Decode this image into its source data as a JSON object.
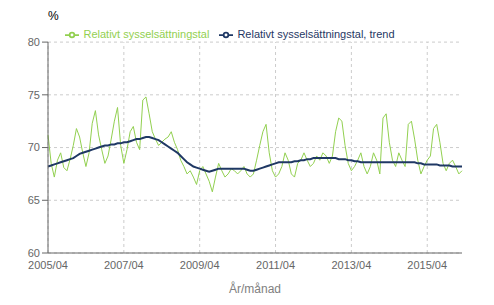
{
  "chart_data": {
    "type": "line",
    "xlabel": "År/månad",
    "ylabel": "%",
    "categories": [
      "2005/04",
      null,
      null,
      null,
      null,
      null,
      null,
      null,
      null,
      null,
      null,
      null,
      null,
      null,
      null,
      null,
      null,
      null,
      null,
      null,
      null,
      null,
      null,
      null,
      "2007/04",
      null,
      null,
      null,
      null,
      null,
      null,
      null,
      null,
      null,
      null,
      null,
      null,
      null,
      null,
      null,
      null,
      null,
      null,
      null,
      null,
      null,
      null,
      null,
      "2009/04",
      null,
      null,
      null,
      null,
      null,
      null,
      null,
      null,
      null,
      null,
      null,
      null,
      null,
      null,
      null,
      null,
      null,
      null,
      null,
      null,
      null,
      null,
      null,
      "2011/04",
      null,
      null,
      null,
      null,
      null,
      null,
      null,
      null,
      null,
      null,
      null,
      null,
      null,
      null,
      null,
      null,
      null,
      null,
      null,
      null,
      null,
      null,
      null,
      "2013/04",
      null,
      null,
      null,
      null,
      null,
      null,
      null,
      null,
      null,
      null,
      null,
      null,
      null,
      null,
      null,
      null,
      null,
      null,
      null,
      null,
      null,
      null,
      null,
      "2015/04",
      null,
      null,
      null,
      null,
      null,
      null,
      null,
      null,
      null,
      null,
      null
    ],
    "series": [
      {
        "name": "Relativt sysselsättningstal",
        "color": "#92d050",
        "values": [
          71.2,
          68.5,
          67.2,
          68.8,
          69.5,
          68.1,
          67.8,
          68.9,
          70.2,
          71.8,
          71.0,
          69.5,
          68.2,
          69.5,
          72.3,
          73.5,
          71.2,
          69.8,
          68.5,
          69.2,
          70.8,
          72.5,
          73.8,
          70.2,
          68.5,
          69.8,
          71.5,
          72.0,
          70.5,
          69.8,
          74.5,
          74.8,
          73.2,
          71.5,
          70.8,
          70.2,
          70.5,
          70.8,
          71.0,
          71.5,
          70.5,
          69.8,
          68.8,
          68.2,
          67.5,
          67.8,
          67.2,
          66.5,
          67.8,
          68.2,
          67.5,
          66.8,
          65.8,
          67.2,
          68.5,
          67.8,
          67.2,
          67.5,
          68.0,
          67.8,
          67.5,
          67.8,
          68.2,
          67.5,
          67.2,
          67.5,
          68.8,
          70.2,
          71.5,
          72.2,
          69.5,
          67.8,
          67.2,
          67.5,
          68.2,
          69.5,
          68.8,
          67.5,
          67.2,
          68.5,
          68.8,
          69.5,
          68.8,
          68.2,
          68.5,
          69.2,
          68.8,
          69.5,
          69.2,
          68.5,
          69.2,
          71.5,
          72.8,
          72.5,
          70.2,
          68.5,
          67.8,
          68.2,
          68.8,
          69.5,
          68.2,
          67.5,
          68.2,
          69.5,
          68.8,
          67.5,
          72.8,
          73.2,
          70.5,
          68.8,
          68.2,
          69.5,
          68.8,
          68.2,
          72.2,
          72.5,
          70.8,
          68.8,
          67.5,
          68.2,
          68.8,
          69.2,
          71.8,
          72.2,
          70.5,
          68.5,
          67.8,
          68.5,
          68.8,
          68.2,
          67.5,
          67.8
        ]
      },
      {
        "name": "Relativt sysselsättningstal, trend",
        "color": "#1f3864",
        "values": [
          68.2,
          68.3,
          68.4,
          68.5,
          68.6,
          68.7,
          68.8,
          68.9,
          69.0,
          69.2,
          69.4,
          69.5,
          69.6,
          69.7,
          69.8,
          69.9,
          70.0,
          70.1,
          70.2,
          70.2,
          70.3,
          70.3,
          70.4,
          70.4,
          70.5,
          70.5,
          70.6,
          70.7,
          70.8,
          70.8,
          70.9,
          71.0,
          71.0,
          70.9,
          70.8,
          70.7,
          70.5,
          70.3,
          70.1,
          69.9,
          69.7,
          69.5,
          69.2,
          68.9,
          68.6,
          68.4,
          68.2,
          68.1,
          68.0,
          67.9,
          67.8,
          67.7,
          67.8,
          67.9,
          68.0,
          68.0,
          68.0,
          68.0,
          68.0,
          68.0,
          68.0,
          68.0,
          68.0,
          67.9,
          67.8,
          67.8,
          67.9,
          68.0,
          68.1,
          68.2,
          68.3,
          68.4,
          68.5,
          68.6,
          68.6,
          68.6,
          68.6,
          68.6,
          68.7,
          68.7,
          68.8,
          68.8,
          68.9,
          68.9,
          69.0,
          69.0,
          69.0,
          69.0,
          69.0,
          69.0,
          69.0,
          69.0,
          68.9,
          68.9,
          68.9,
          68.8,
          68.8,
          68.7,
          68.7,
          68.6,
          68.6,
          68.6,
          68.6,
          68.6,
          68.6,
          68.6,
          68.6,
          68.6,
          68.6,
          68.6,
          68.6,
          68.6,
          68.6,
          68.6,
          68.6,
          68.6,
          68.6,
          68.5,
          68.5,
          68.4,
          68.4,
          68.4,
          68.4,
          68.4,
          68.3,
          68.3,
          68.3,
          68.3,
          68.2,
          68.2,
          68.2,
          68.2
        ]
      }
    ],
    "ylim": [
      60,
      80
    ],
    "yticks": [
      60,
      65,
      70,
      75,
      80
    ],
    "grid": true,
    "legend": "top"
  }
}
